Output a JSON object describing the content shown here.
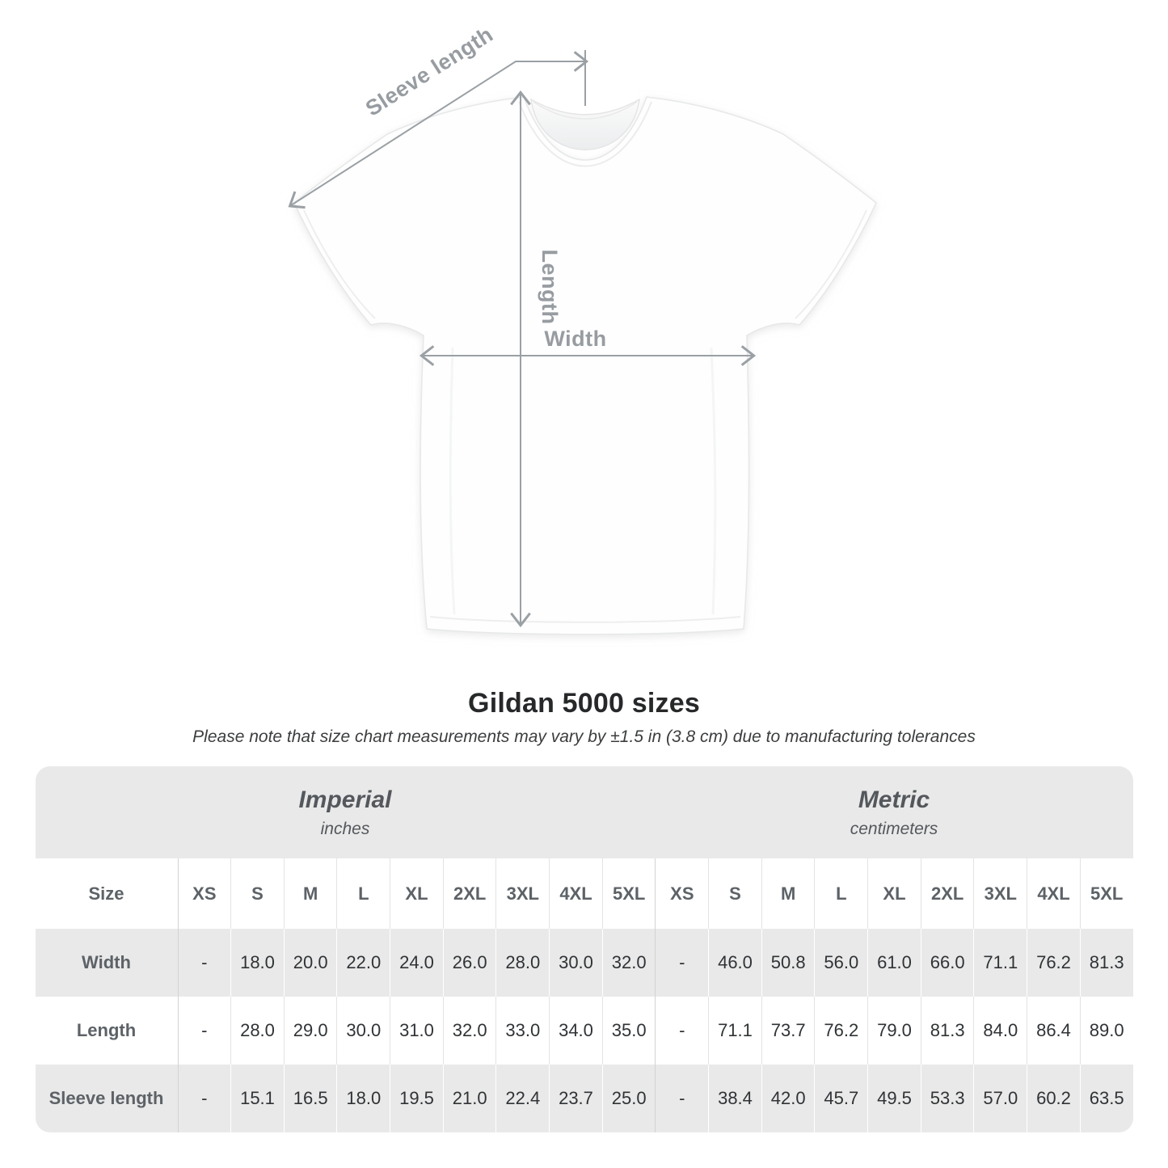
{
  "diagram": {
    "labels": {
      "sleeve_length": "Sleeve length",
      "length": "Length",
      "width": "Width"
    }
  },
  "title": "Gildan 5000 sizes",
  "note": "Please note that size chart measurements may vary by ±1.5 in (3.8 cm) due to manufacturing tolerances",
  "table": {
    "size_header": "Size",
    "groups": [
      {
        "label": "Imperial",
        "sublabel": "inches"
      },
      {
        "label": "Metric",
        "sublabel": "centimeters"
      }
    ],
    "sizes": [
      "XS",
      "S",
      "M",
      "L",
      "XL",
      "2XL",
      "3XL",
      "4XL",
      "5XL"
    ],
    "rows": [
      {
        "label": "Width",
        "imperial": [
          "-",
          "18.0",
          "20.0",
          "22.0",
          "24.0",
          "26.0",
          "28.0",
          "30.0",
          "32.0"
        ],
        "metric": [
          "-",
          "46.0",
          "50.8",
          "56.0",
          "61.0",
          "66.0",
          "71.1",
          "76.2",
          "81.3"
        ]
      },
      {
        "label": "Length",
        "imperial": [
          "-",
          "28.0",
          "29.0",
          "30.0",
          "31.0",
          "32.0",
          "33.0",
          "34.0",
          "35.0"
        ],
        "metric": [
          "-",
          "71.1",
          "73.7",
          "76.2",
          "79.0",
          "81.3",
          "84.0",
          "86.4",
          "89.0"
        ]
      },
      {
        "label": "Sleeve length",
        "imperial": [
          "-",
          "15.1",
          "16.5",
          "18.0",
          "19.5",
          "21.0",
          "22.4",
          "23.7",
          "25.0"
        ],
        "metric": [
          "-",
          "38.4",
          "42.0",
          "45.7",
          "49.5",
          "53.3",
          "57.0",
          "60.2",
          "63.5"
        ]
      }
    ]
  },
  "colors": {
    "table_band": "#e9e9e9",
    "arrow_gray": "#9aa0a4",
    "label_gray": "#979ca1"
  }
}
